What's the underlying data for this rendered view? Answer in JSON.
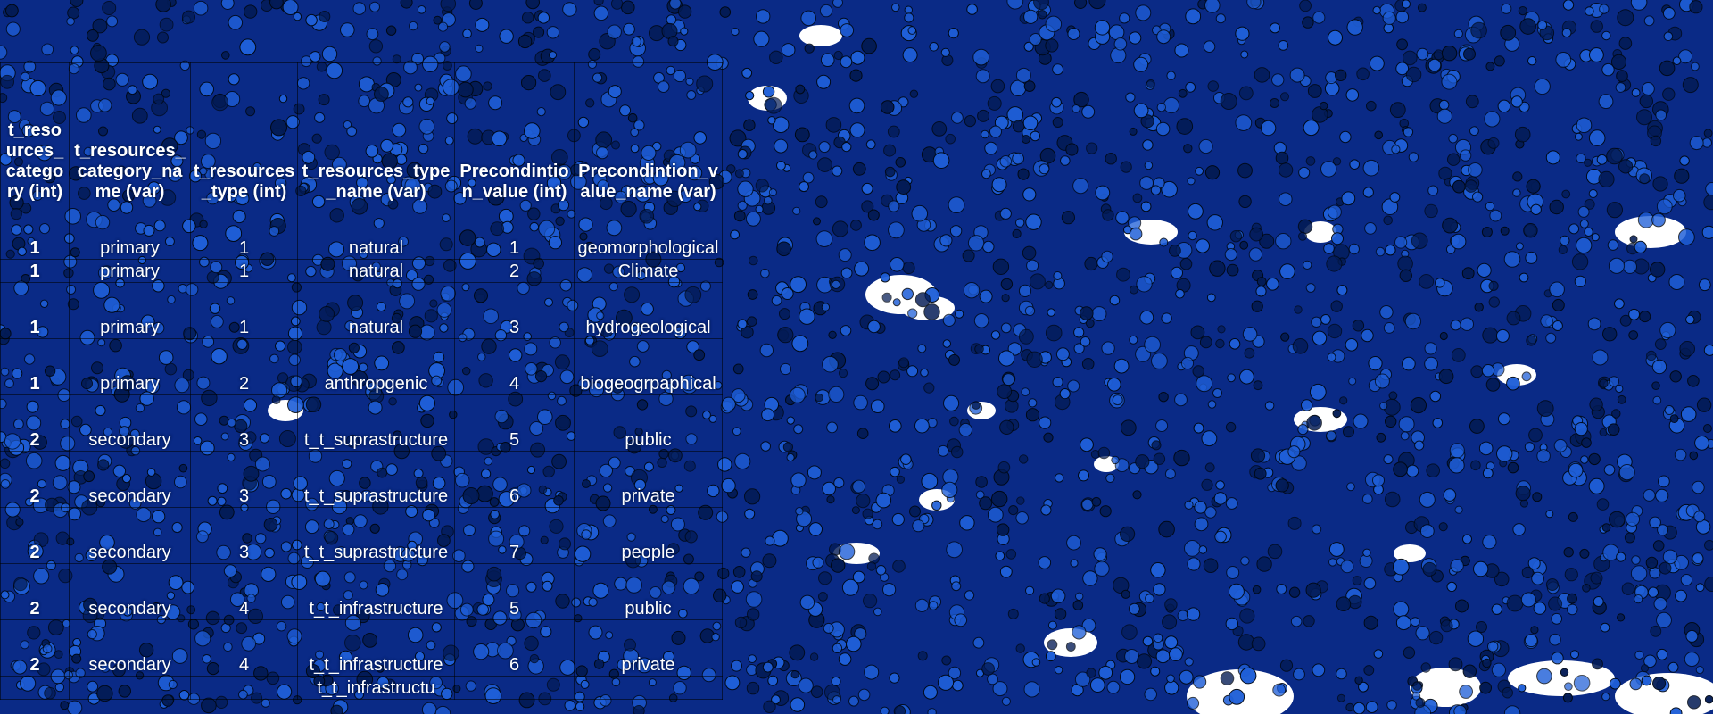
{
  "colors": {
    "background": "#0a2a86",
    "cell_fill": "#1f5fd8",
    "cell_dark": "#031b55",
    "gap": "#ffffff"
  },
  "table": {
    "headers": [
      "t_resources_category (int)",
      "t_resources_category_name (var)",
      "t_resources_type (int)",
      "t_resources_type_name (var)",
      "Precondintion_value (int)",
      "Precondintion_value_name (var)"
    ],
    "rows": [
      [
        "1",
        "primary",
        "1",
        "natural",
        "1",
        "geomorphological"
      ],
      [
        "1",
        "primary",
        "1",
        "natural",
        "2",
        "Climate"
      ],
      [
        "1",
        "primary",
        "1",
        "natural",
        "3",
        "hydrogeological"
      ],
      [
        "1",
        "primary",
        "2",
        "anthropgenic",
        "4",
        "biogeogrpaphical"
      ],
      [
        "2",
        "secondary",
        "3",
        "t_t_suprastructure",
        "5",
        "public"
      ],
      [
        "2",
        "secondary",
        "3",
        "t_t_suprastructure",
        "6",
        "private"
      ],
      [
        "2",
        "secondary",
        "3",
        "t_t_suprastructure",
        "7",
        "people"
      ],
      [
        "2",
        "secondary",
        "4",
        "t_t_infrastructure",
        "5",
        "public"
      ],
      [
        "2",
        "secondary",
        "4",
        "t_t_infrastructure",
        "6",
        "private"
      ],
      [
        "",
        "",
        "",
        "t_t_infrastructu",
        "",
        ""
      ]
    ]
  }
}
